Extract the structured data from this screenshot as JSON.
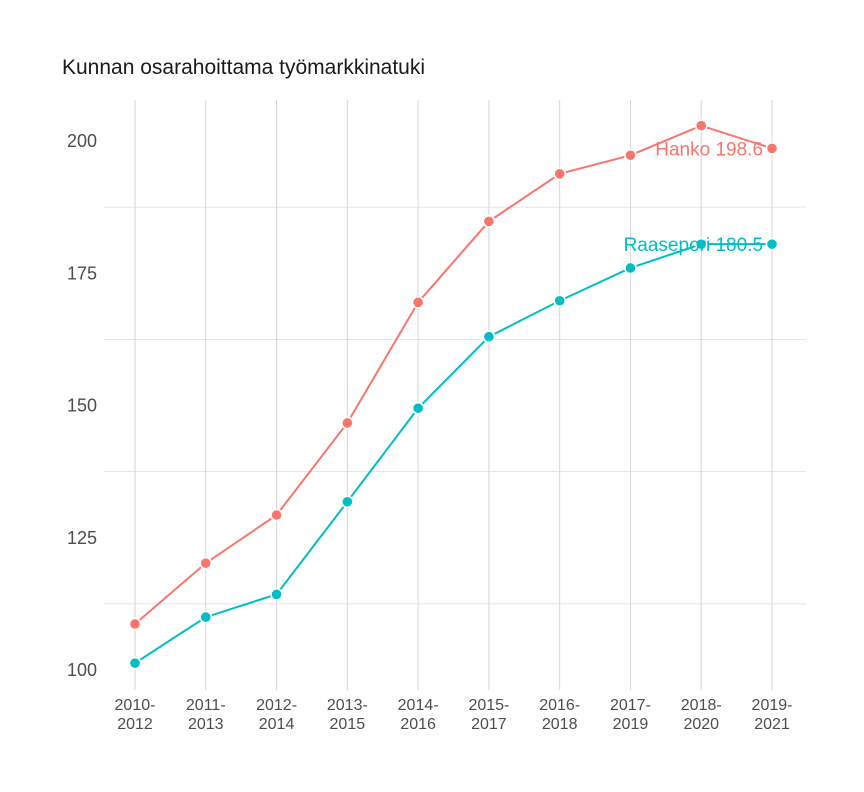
{
  "chart_data": {
    "type": "line",
    "title": "Kunnan osarahoittama työmarkkinatuki",
    "xlabel": "",
    "ylabel": "",
    "categories": [
      [
        "2010-",
        "2012"
      ],
      [
        "2011-",
        "2013"
      ],
      [
        "2012-",
        "2014"
      ],
      [
        "2013-",
        "2015"
      ],
      [
        "2014-",
        "2016"
      ],
      [
        "2015-",
        "2017"
      ],
      [
        "2016-",
        "2018"
      ],
      [
        "2017-",
        "2019"
      ],
      [
        "2018-",
        "2020"
      ],
      [
        "2019-",
        "2021"
      ]
    ],
    "y_ticks": [
      100,
      125,
      150,
      175,
      200
    ],
    "ylim": [
      98,
      209
    ],
    "grid": true,
    "series": [
      {
        "name": "Hanko",
        "color": "#F8766D",
        "values": [
          108.7,
          120.2,
          129.3,
          146.7,
          169.5,
          184.8,
          193.8,
          197.3,
          202.9,
          198.6
        ],
        "end_label": "Hanko 198.6"
      },
      {
        "name": "Raasepori",
        "color": "#00BFC4",
        "values": [
          101.3,
          110.0,
          114.3,
          131.8,
          149.5,
          163.0,
          169.8,
          176.0,
          180.5,
          180.5
        ],
        "end_label": "Raasepori 180.5"
      }
    ]
  }
}
